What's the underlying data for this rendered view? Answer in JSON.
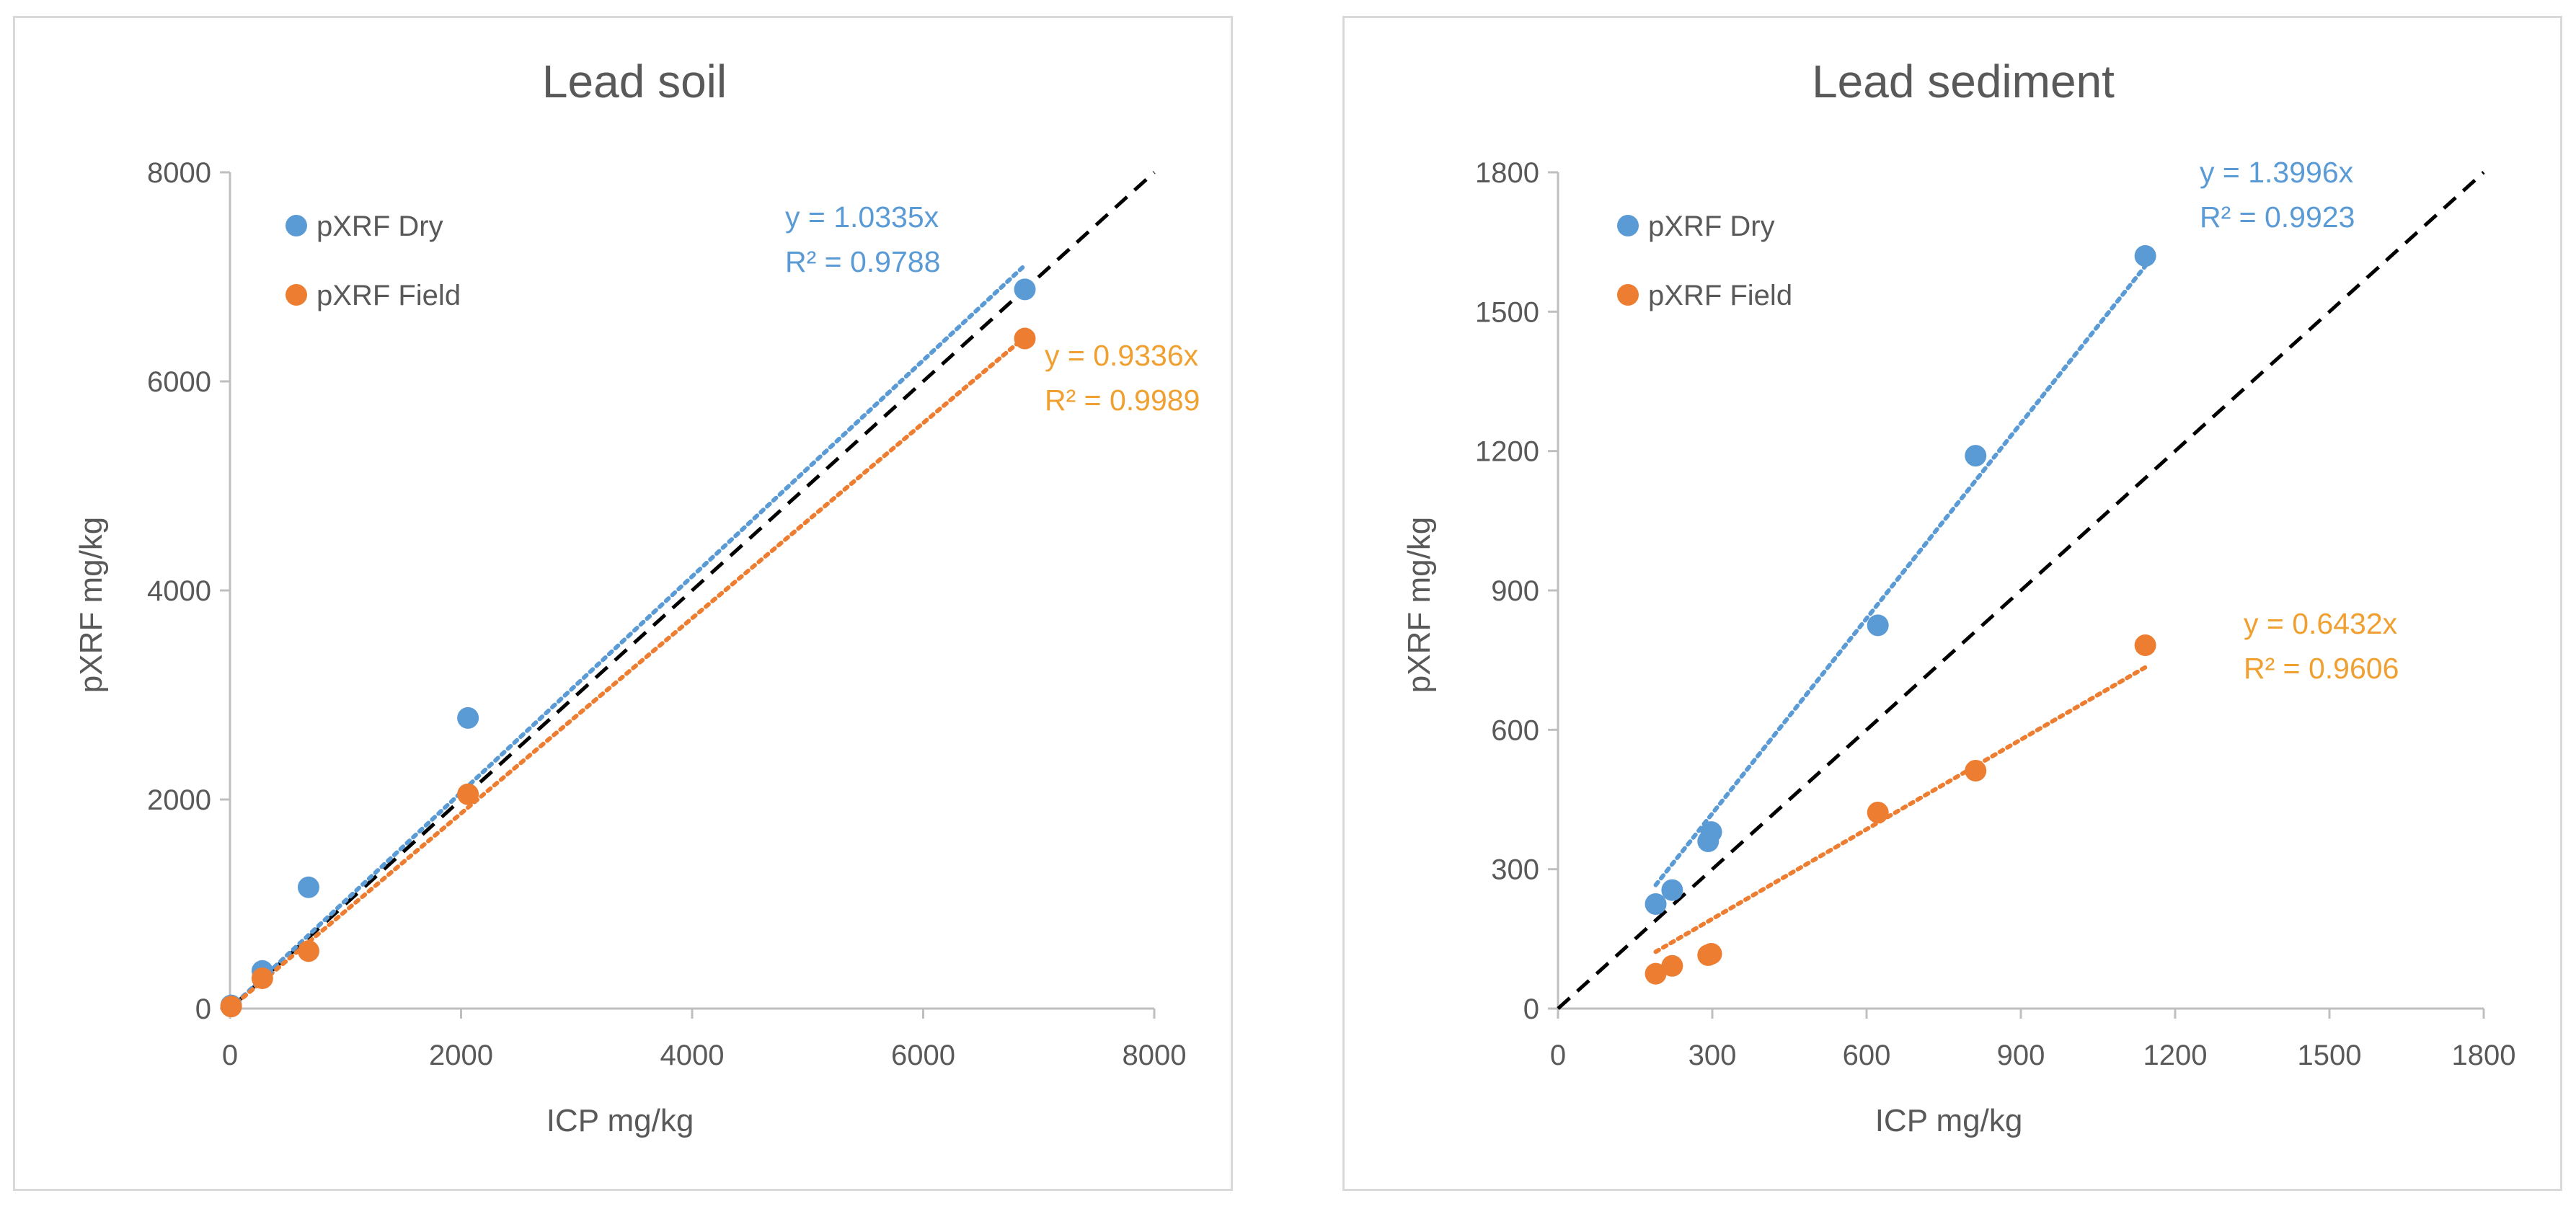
{
  "chart_data": [
    {
      "type": "scatter",
      "title": "Lead soil",
      "xlabel": "ICP mg/kg",
      "ylabel": "pXRF mg/kg",
      "xlim": [
        0,
        8000
      ],
      "ylim": [
        0,
        8000
      ],
      "xticks": [
        0,
        2000,
        4000,
        6000,
        8000
      ],
      "yticks": [
        0,
        2000,
        4000,
        6000,
        8000
      ],
      "xtick_labels": [
        "0",
        "2000",
        "4000",
        "6000",
        "8000"
      ],
      "ytick_labels": [
        "0",
        "2000",
        "4000",
        "6000",
        "8000"
      ],
      "legend_position": "top-left",
      "one_to_one_line": true,
      "series": [
        {
          "name": "pXRF Dry",
          "color": "#5b9bd5",
          "x": [
            10,
            280,
            680,
            2060,
            6880
          ],
          "y": [
            30,
            360,
            1160,
            2780,
            6880
          ],
          "trendline": {
            "slope": 1.0335,
            "x_start": 0,
            "x_end": 6880,
            "equation": "y = 1.0335x",
            "r2": "R² = 0.9788"
          }
        },
        {
          "name": "pXRF Field",
          "color": "#ed7d31",
          "label_color": "#f0a030",
          "x": [
            10,
            280,
            680,
            2060,
            6880
          ],
          "y": [
            20,
            290,
            550,
            2050,
            6410
          ],
          "trendline": {
            "slope": 0.9336,
            "x_start": 0,
            "x_end": 6880,
            "equation": "y = 0.9336x",
            "r2": "R² = 0.9989"
          }
        }
      ]
    },
    {
      "type": "scatter",
      "title": "Lead sediment",
      "xlabel": "ICP mg/kg",
      "ylabel": "pXRF mg/kg",
      "xlim": [
        0,
        1800
      ],
      "ylim": [
        0,
        1800
      ],
      "xticks": [
        0,
        300,
        600,
        900,
        1200,
        1500,
        1800
      ],
      "yticks": [
        0,
        300,
        600,
        900,
        1200,
        1500,
        1800
      ],
      "xtick_labels": [
        "0",
        "300",
        "600",
        "900",
        "1200",
        "1500",
        "1800"
      ],
      "ytick_labels": [
        "0",
        "300",
        "600",
        "900",
        "1200",
        "1500",
        "1800"
      ],
      "legend_position": "top-left",
      "one_to_one_line": true,
      "series": [
        {
          "name": "pXRF Dry",
          "color": "#5b9bd5",
          "x": [
            190,
            222,
            292,
            298,
            622,
            812,
            1142
          ],
          "y": [
            225,
            255,
            360,
            380,
            825,
            1190,
            1620
          ],
          "trendline": {
            "slope": 1.3996,
            "x_start": 190,
            "x_end": 1142,
            "equation": "y = 1.3996x",
            "r2": "R² = 0.9923"
          }
        },
        {
          "name": "pXRF Field",
          "color": "#ed7d31",
          "label_color": "#f0a030",
          "x": [
            190,
            222,
            292,
            298,
            622,
            812,
            1142
          ],
          "y": [
            75,
            92,
            115,
            118,
            422,
            512,
            782
          ],
          "trendline": {
            "slope": 0.6432,
            "x_start": 190,
            "x_end": 1142,
            "equation": "y = 0.6432x",
            "r2": "R² = 0.9606"
          }
        }
      ]
    }
  ]
}
